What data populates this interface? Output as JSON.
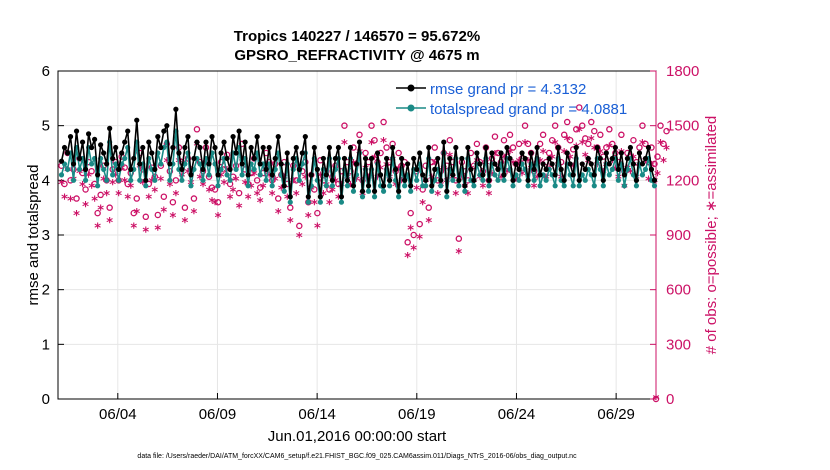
{
  "chart_data": {
    "type": "line",
    "title_line1": "Tropics 140227 / 146570 = 95.672%",
    "title_line2": "GPSRO_REFRACTIVITY @ 4675 m",
    "xlabel": "Jun.01,2016 00:00:00 start",
    "ylabel_left": "rmse and totalspread",
    "ylabel_right": "# of obs: o=possible; ∗=assimilated",
    "footnote": "data file: /Users/raeder/DAI/ATM_forcXX/CAM6_setup/f.e21.FHIST_BGC.f09_025.CAM6assim.011/Diags_NTrS_2016-06/obs_diag_output.nc",
    "xlim": [
      1,
      31
    ],
    "ylim_left": [
      0,
      6
    ],
    "ylim_right": [
      0,
      1800
    ],
    "x_tick_values": [
      4,
      9,
      14,
      19,
      24,
      29
    ],
    "x_tick_labels": [
      "06/04",
      "06/09",
      "06/14",
      "06/19",
      "06/24",
      "06/29"
    ],
    "y_left_ticks": [
      "0",
      "1",
      "2",
      "3",
      "4",
      "5",
      "6"
    ],
    "y_right_ticks": [
      "0",
      "300",
      "600",
      "900",
      "1200",
      "1500",
      "1800"
    ],
    "legend": [
      "rmse grand pr = 4.3132",
      "totalspread grand pr = 4.0881"
    ],
    "colors": {
      "rmse": "#000000",
      "totalspread": "#1a8a86",
      "obs": "#cc1166",
      "legend_text": "#1a5fd6",
      "grid": "#e6e6e6"
    },
    "series": [
      {
        "name": "rmse",
        "values": [
          4.35,
          4.6,
          4.5,
          4.8,
          4.3,
          4.9,
          4.4,
          4.7,
          4.2,
          4.85,
          4.6,
          4.75,
          4.1,
          4.65,
          4.5,
          4.3,
          4.95,
          4.4,
          4.6,
          4.2,
          4.5,
          4.7,
          4.9,
          4.2,
          4.4,
          5.1,
          4.3,
          4.6,
          4.0,
          4.7,
          4.5,
          4.2,
          4.8,
          4.6,
          4.9,
          5.0,
          4.3,
          4.6,
          5.3,
          4.5,
          4.2,
          4.6,
          4.8,
          4.1,
          4.4,
          4.7,
          4.6,
          4.2,
          4.7,
          4.3,
          4.8,
          4.6,
          4.1,
          4.5,
          4.7,
          4.4,
          4.2,
          4.8,
          4.5,
          4.9,
          4.3,
          4.7,
          4.1,
          4.6,
          4.4,
          4.8,
          4.3,
          4.6,
          4.2,
          4.6,
          4.1,
          4.4,
          4.8,
          4.3,
          3.9,
          4.5,
          3.7,
          4.4,
          4.6,
          4.2,
          4.5,
          4.8,
          3.7,
          4.1,
          4.6,
          4.2,
          3.7,
          4.4,
          4.1,
          4.6,
          4.0,
          4.4,
          4.6,
          3.7,
          4.4,
          4.0,
          4.6,
          3.9,
          4.3,
          4.7,
          3.8,
          4.4,
          3.9,
          4.4,
          3.8,
          4.5,
          4.1,
          3.9,
          4.4,
          4.0,
          4.6,
          4.2,
          3.8,
          4.4,
          4.0,
          4.3,
          3.9,
          4.4,
          4.2,
          4.5,
          4.1,
          4.0,
          4.6,
          3.9,
          4.2,
          4.4,
          4.0,
          4.7,
          3.8,
          4.4,
          4.1,
          4.6,
          4.0,
          4.4,
          3.9,
          4.6,
          4.2,
          4.0,
          4.5,
          4.3,
          4.1,
          4.6,
          4.0,
          4.5,
          4.3,
          4.2,
          4.5,
          4.1,
          4.6,
          4.4,
          4.0,
          4.3,
          4.2,
          4.5,
          4.4,
          4.0,
          4.5,
          4.2,
          4.6,
          4.1,
          4.3,
          4.2,
          4.4,
          4.3,
          4.1,
          4.6,
          4.2,
          4.0,
          4.5,
          4.3,
          4.1,
          4.6,
          4.0,
          4.3,
          4.2,
          4.4,
          4.3,
          4.1,
          4.6,
          4.4,
          4.0,
          4.5,
          4.3,
          4.4,
          4.6,
          4.2,
          4.5,
          4.1,
          4.4,
          4.6,
          4.3,
          4.0,
          4.5,
          4.3,
          4.4,
          4.6,
          4.2,
          4.0
        ]
      },
      {
        "name": "totalspread",
        "values": [
          4.1,
          4.3,
          4.2,
          4.5,
          4.0,
          4.6,
          4.2,
          4.4,
          4.0,
          4.6,
          4.3,
          4.4,
          3.9,
          4.4,
          4.2,
          4.0,
          4.7,
          4.1,
          4.3,
          4.0,
          4.3,
          4.4,
          4.6,
          4.0,
          4.2,
          4.7,
          4.0,
          4.3,
          3.9,
          4.4,
          4.2,
          4.0,
          4.5,
          4.3,
          4.6,
          4.7,
          4.0,
          4.3,
          4.9,
          4.2,
          4.0,
          4.3,
          4.5,
          3.9,
          4.2,
          4.4,
          4.3,
          4.0,
          4.4,
          4.1,
          4.5,
          4.3,
          3.9,
          4.2,
          4.4,
          4.1,
          4.0,
          4.5,
          4.2,
          4.6,
          4.1,
          4.4,
          3.9,
          4.3,
          4.2,
          4.5,
          4.1,
          4.3,
          4.0,
          4.3,
          3.9,
          4.2,
          4.5,
          4.1,
          3.8,
          4.3,
          3.6,
          4.2,
          4.4,
          4.0,
          4.3,
          4.5,
          3.6,
          3.9,
          4.4,
          4.0,
          3.6,
          4.2,
          3.9,
          4.4,
          3.9,
          4.2,
          4.4,
          3.6,
          4.2,
          3.9,
          4.4,
          3.8,
          4.1,
          4.5,
          3.7,
          4.2,
          3.8,
          4.2,
          3.7,
          4.3,
          3.9,
          3.8,
          4.2,
          3.9,
          4.4,
          4.0,
          3.7,
          4.2,
          3.9,
          4.1,
          3.8,
          4.2,
          4.0,
          4.3,
          3.9,
          3.9,
          4.4,
          3.8,
          4.0,
          4.2,
          3.9,
          4.5,
          3.7,
          4.2,
          4.0,
          4.4,
          3.9,
          4.2,
          3.8,
          4.4,
          4.0,
          3.9,
          4.3,
          4.1,
          4.0,
          4.4,
          3.9,
          4.3,
          4.1,
          4.0,
          4.3,
          4.0,
          4.4,
          4.2,
          3.9,
          4.1,
          4.0,
          4.3,
          4.2,
          3.9,
          4.3,
          4.0,
          4.4,
          3.9,
          4.1,
          4.0,
          4.2,
          4.1,
          3.9,
          4.4,
          4.0,
          3.9,
          4.3,
          4.1,
          3.9,
          4.4,
          3.9,
          4.1,
          4.0,
          4.2,
          4.1,
          3.9,
          4.4,
          4.2,
          3.9,
          4.3,
          4.1,
          4.2,
          4.4,
          4.0,
          4.3,
          3.9,
          4.2,
          4.4,
          4.1,
          3.9,
          4.3,
          4.1,
          4.2,
          4.4,
          4.0,
          3.9
        ]
      },
      {
        "name": "possible_obs",
        "values": [
          1280,
          1180,
          1350,
          1200,
          1260,
          1100,
          1320,
          1240,
          1150,
          1300,
          1250,
          1180,
          1020,
          1120,
          1280,
          1200,
          1050,
          1260,
          1300,
          1200,
          1330,
          1270,
          1180,
          1240,
          1020,
          1100,
          1350,
          1260,
          1000,
          1180,
          1270,
          1220,
          1010,
          1280,
          1110,
          1400,
          1250,
          1080,
          1200,
          1380,
          1300,
          1050,
          1320,
          1260,
          1100,
          1480,
          1300,
          1250,
          1380,
          1220,
          1160,
          1150,
          1080,
          1300,
          1260,
          1340,
          1180,
          1220,
          1280,
          1130,
          1400,
          1260,
          1180,
          1240,
          1320,
          1200,
          1160,
          1240,
          1350,
          1300,
          1200,
          1290,
          1100,
          1230,
          1300,
          1180,
          1050,
          1280,
          1200,
          950,
          1250,
          1300,
          1080,
          1230,
          1150,
          1020,
          1310,
          1200,
          1250,
          1150,
          1220,
          1280,
          1180,
          1250,
          1500,
          1300,
          1250,
          1380,
          1290,
          1450,
          1200,
          1350,
          1300,
          1500,
          1420,
          1300,
          1350,
          1520,
          1380,
          1300,
          1400,
          1250,
          1350,
          1280,
          1300,
          860,
          1020,
          900,
          1250,
          960,
          1150,
          1280,
          1050,
          1300,
          1380,
          1200,
          1250,
          1350,
          1280,
          1420,
          1300,
          1200,
          880,
          1300,
          1250,
          1200,
          1350,
          1280,
          1400,
          1300,
          1250,
          1380,
          1200,
          1320,
          1440,
          1350,
          1300,
          1420,
          1330,
          1450,
          1380,
          1290,
          1400,
          1320,
          1500,
          1400,
          1350,
          1250,
          1300,
          1400,
          1450,
          1300,
          1350,
          1420,
          1500,
          1380,
          1300,
          1450,
          1520,
          1420,
          1370,
          1480,
          1600,
          1500,
          1430,
          1400,
          1520,
          1470,
          1380,
          1450,
          1330,
          1380,
          1480,
          1400,
          1350,
          1300,
          1450,
          1250,
          1350,
          1330,
          1420,
          1300,
          1380,
          1500,
          1400,
          1300,
          1380,
          1290,
          1330,
          1500,
          1400,
          1470
        ]
      },
      {
        "name": "assimilated_obs",
        "values": [
          1180,
          1100,
          1250,
          1090,
          1200,
          1010,
          1240,
          1170,
          1060,
          1220,
          1160,
          1090,
          940,
          1040,
          1200,
          1120,
          970,
          1180,
          1220,
          1120,
          1260,
          1190,
          1100,
          1160,
          940,
          1020,
          1270,
          1180,
          920,
          1100,
          1190,
          1140,
          930,
          1200,
          1030,
          1300,
          1170,
          1000,
          1120,
          1300,
          1220,
          970,
          1240,
          1180,
          1020,
          1390,
          1210,
          1170,
          1290,
          1140,
          1080,
          1070,
          1000,
          1220,
          1180,
          1250,
          1100,
          1140,
          1200,
          1050,
          1310,
          1180,
          1100,
          1160,
          1230,
          1120,
          1080,
          1160,
          1260,
          1220,
          1120,
          1200,
          1020,
          1150,
          1210,
          1100,
          970,
          1190,
          1120,
          890,
          1170,
          1210,
          1000,
          1150,
          1070,
          940,
          1220,
          1120,
          1170,
          1070,
          1140,
          1190,
          1100,
          1170,
          1400,
          1210,
          1170,
          1290,
          1200,
          1350,
          1120,
          1260,
          1210,
          1400,
          1320,
          1210,
          1260,
          1410,
          1280,
          1210,
          1310,
          1170,
          1260,
          1190,
          1210,
          780,
          930,
          820,
          1150,
          880,
          1070,
          1190,
          970,
          1210,
          1290,
          1120,
          1170,
          1260,
          1190,
          1330,
          1210,
          1120,
          800,
          1210,
          1160,
          1120,
          1260,
          1190,
          1300,
          1210,
          1160,
          1290,
          1120,
          1230,
          1340,
          1260,
          1210,
          1320,
          1240,
          1350,
          1290,
          1200,
          1300,
          1230,
          1400,
          1300,
          1260,
          1160,
          1210,
          1300,
          1350,
          1210,
          1260,
          1320,
          1400,
          1280,
          1210,
          1350,
          1420,
          1320,
          1270,
          1380,
          1470,
          1400,
          1330,
          1300,
          1420,
          1370,
          1280,
          1350,
          1240,
          1280,
          1380,
          1300,
          1260,
          1210,
          1350,
          1160,
          1260,
          1240,
          1320,
          1210,
          1280,
          1400,
          1300,
          1200,
          1280,
          1190,
          1230,
          1400,
          1300,
          1370
        ]
      }
    ]
  }
}
